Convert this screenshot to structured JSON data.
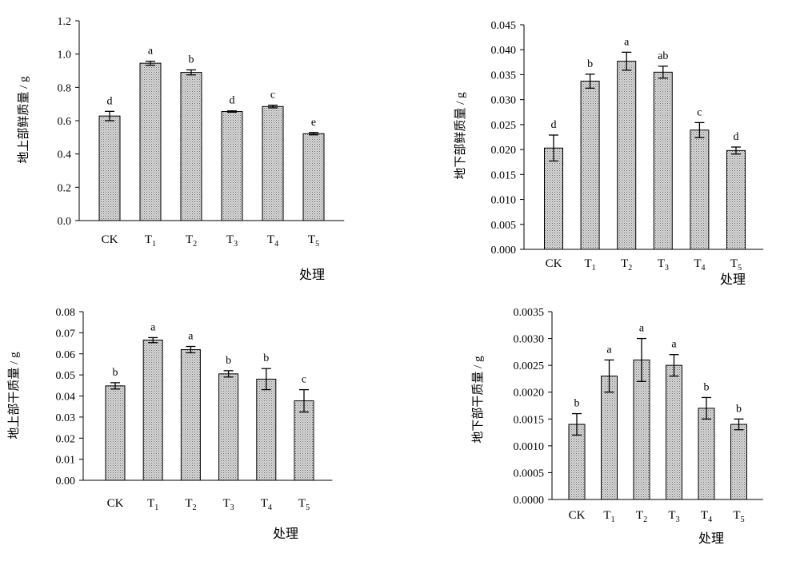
{
  "colors": {
    "bar_fill": "#d6d6d6",
    "bar_dots": "#6e6e6e",
    "axis": "#000000"
  },
  "chart_data": [
    {
      "type": "bar",
      "ylabel": "地上部鲜质量 / g",
      "xlabel": "处理",
      "categories": [
        [
          "CK",
          ""
        ],
        [
          "T",
          "1"
        ],
        [
          "T",
          "2"
        ],
        [
          "T",
          "3"
        ],
        [
          "T",
          "4"
        ],
        [
          "T",
          "5"
        ]
      ],
      "values": [
        0.628,
        0.945,
        0.89,
        0.655,
        0.685,
        0.522
      ],
      "errors": [
        0.028,
        0.012,
        0.015,
        0.004,
        0.008,
        0.007
      ],
      "significance": [
        "d",
        "a",
        "b",
        "d",
        "c",
        "e"
      ],
      "ylim": [
        0,
        1.2
      ],
      "yticks": [
        "0.0",
        "0.2",
        "0.4",
        "0.6",
        "0.8",
        "1.0",
        "1.2"
      ],
      "grid": false
    },
    {
      "type": "bar",
      "ylabel": "地下部鲜质量 / g",
      "xlabel": "处理",
      "categories": [
        [
          "CK",
          ""
        ],
        [
          "T",
          "1"
        ],
        [
          "T",
          "2"
        ],
        [
          "T",
          "3"
        ],
        [
          "T",
          "4"
        ],
        [
          "T",
          "5"
        ]
      ],
      "values": [
        0.0203,
        0.0337,
        0.0377,
        0.0355,
        0.0239,
        0.0198
      ],
      "errors": [
        0.0026,
        0.0014,
        0.0018,
        0.0012,
        0.0015,
        0.0007
      ],
      "significance": [
        "d",
        "b",
        "a",
        "ab",
        "c",
        "d"
      ],
      "ylim": [
        0,
        0.045
      ],
      "yticks": [
        "0.000",
        "0.005",
        "0.010",
        "0.015",
        "0.020",
        "0.025",
        "0.030",
        "0.035",
        "0.040",
        "0.045"
      ],
      "grid": false
    },
    {
      "type": "bar",
      "ylabel": "地上部干质量 / g",
      "xlabel": "处理",
      "categories": [
        [
          "CK",
          ""
        ],
        [
          "T",
          "1"
        ],
        [
          "T",
          "2"
        ],
        [
          "T",
          "3"
        ],
        [
          "T",
          "4"
        ],
        [
          "T",
          "5"
        ]
      ],
      "values": [
        0.0448,
        0.0665,
        0.062,
        0.0505,
        0.048,
        0.0377
      ],
      "errors": [
        0.0015,
        0.0012,
        0.0015,
        0.0015,
        0.005,
        0.0053
      ],
      "significance": [
        "b",
        "a",
        "a",
        "b",
        "b",
        "c"
      ],
      "ylim": [
        0,
        0.08
      ],
      "yticks": [
        "0.00",
        "0.01",
        "0.02",
        "0.03",
        "0.04",
        "0.05",
        "0.06",
        "0.07",
        "0.08"
      ],
      "grid": false
    },
    {
      "type": "bar",
      "ylabel": "地下部干质量 / g",
      "xlabel": "处理",
      "categories": [
        [
          "CK",
          ""
        ],
        [
          "T",
          "1"
        ],
        [
          "T",
          "2"
        ],
        [
          "T",
          "3"
        ],
        [
          "T",
          "4"
        ],
        [
          "T",
          "5"
        ]
      ],
      "values": [
        0.0014,
        0.0023,
        0.0026,
        0.0025,
        0.0017,
        0.0014
      ],
      "errors": [
        0.0002,
        0.0003,
        0.0004,
        0.0002,
        0.0002,
        0.0001
      ],
      "significance": [
        "b",
        "a",
        "a",
        "a",
        "b",
        "b"
      ],
      "ylim": [
        0,
        0.0035
      ],
      "yticks": [
        "0.0000",
        "0.0005",
        "0.0010",
        "0.0015",
        "0.0020",
        "0.0025",
        "0.0030",
        "0.0035"
      ],
      "grid": false
    }
  ]
}
